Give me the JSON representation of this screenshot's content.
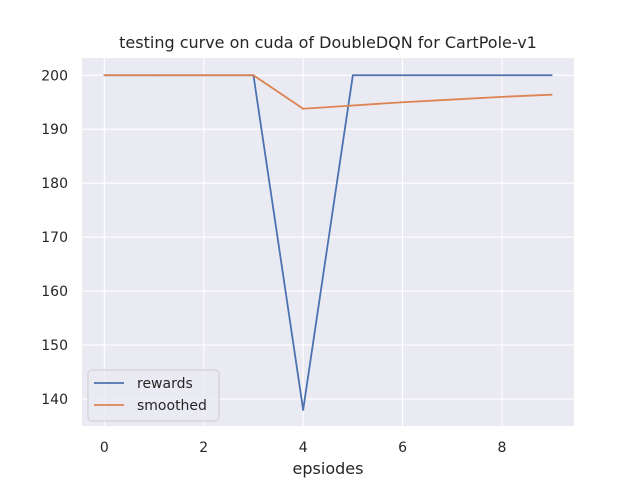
{
  "chart_data": {
    "type": "line",
    "title": "testing curve on cuda of DoubleDQN for CartPole-v1",
    "xlabel": "epsiodes",
    "ylabel": "",
    "x": [
      0,
      1,
      2,
      3,
      4,
      5,
      6,
      7,
      8,
      9
    ],
    "xlim": [
      -0.45,
      9.45
    ],
    "ylim": [
      135.0,
      203.2
    ],
    "xticks": [
      0,
      2,
      4,
      6,
      8
    ],
    "yticks": [
      140,
      150,
      160,
      170,
      180,
      190,
      200
    ],
    "grid": true,
    "legend_position": "lower-left",
    "series": [
      {
        "name": "rewards",
        "color": "#4c72b0",
        "values": [
          200,
          200,
          200,
          200,
          138,
          200,
          200,
          200,
          200,
          200
        ]
      },
      {
        "name": "smoothed",
        "color": "#dd8452",
        "values": [
          200,
          200,
          200,
          200,
          193.8,
          194.4,
          195.0,
          195.5,
          196.0,
          196.4
        ]
      }
    ],
    "background_color": "#eaeaf2",
    "grid_color": "#ffffff"
  }
}
